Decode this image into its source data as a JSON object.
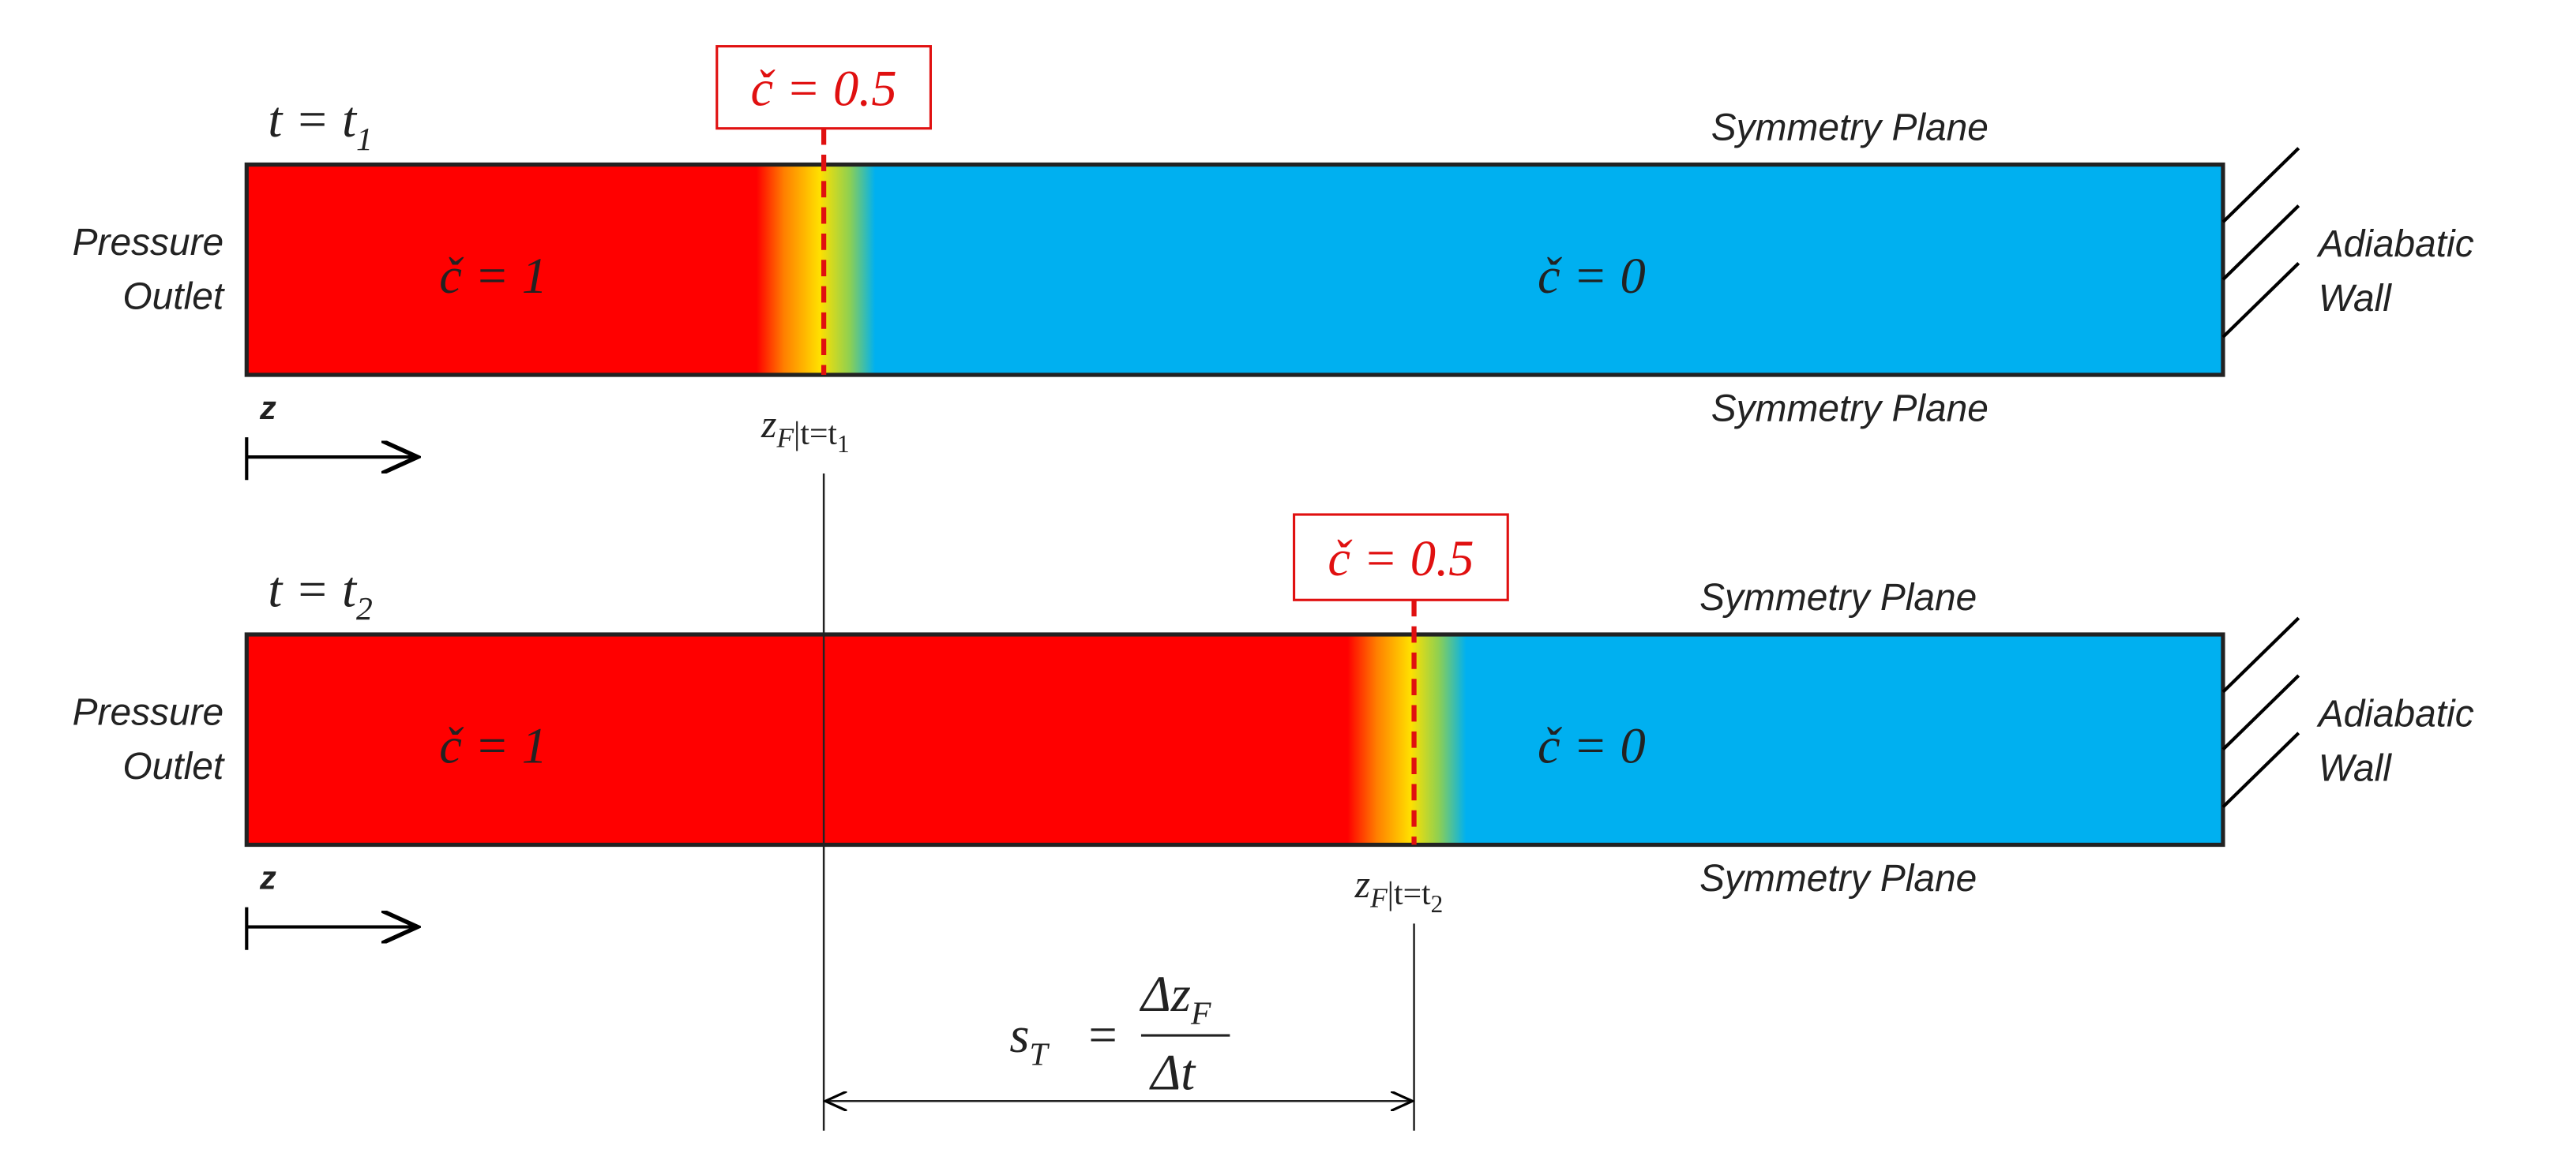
{
  "panels": [
    {
      "time_label": {
        "main": "t = t",
        "sub": "1"
      },
      "left_label": [
        "Pressure",
        "Outlet"
      ],
      "right_label": [
        "Adiabatic",
        "Wall"
      ],
      "top_label": "Symmetry Plane",
      "bottom_label": "Symmetry Plane",
      "burnt": "č = 1",
      "unburnt": "č = 0",
      "front": "č = 0.5",
      "axis": "z",
      "front_position": {
        "main": "z",
        "main_sub": "F",
        "cond": "|t=t",
        "cond_sub": "1"
      }
    },
    {
      "time_label": {
        "main": "t = t",
        "sub": "2"
      },
      "left_label": [
        "Pressure",
        "Outlet"
      ],
      "right_label": [
        "Adiabatic",
        "Wall"
      ],
      "top_label": "Symmetry Plane",
      "bottom_label": "Symmetry Plane",
      "burnt": "č = 1",
      "unburnt": "č = 0",
      "front": "č = 0.5",
      "axis": "z",
      "front_position": {
        "main": "z",
        "main_sub": "F",
        "cond": "|t=t",
        "cond_sub": "2"
      }
    }
  ],
  "speed": {
    "lhs": "s",
    "lhs_sub": "T",
    "eq": "=",
    "num": "Δz",
    "num_sub": "F",
    "den": "Δt"
  }
}
